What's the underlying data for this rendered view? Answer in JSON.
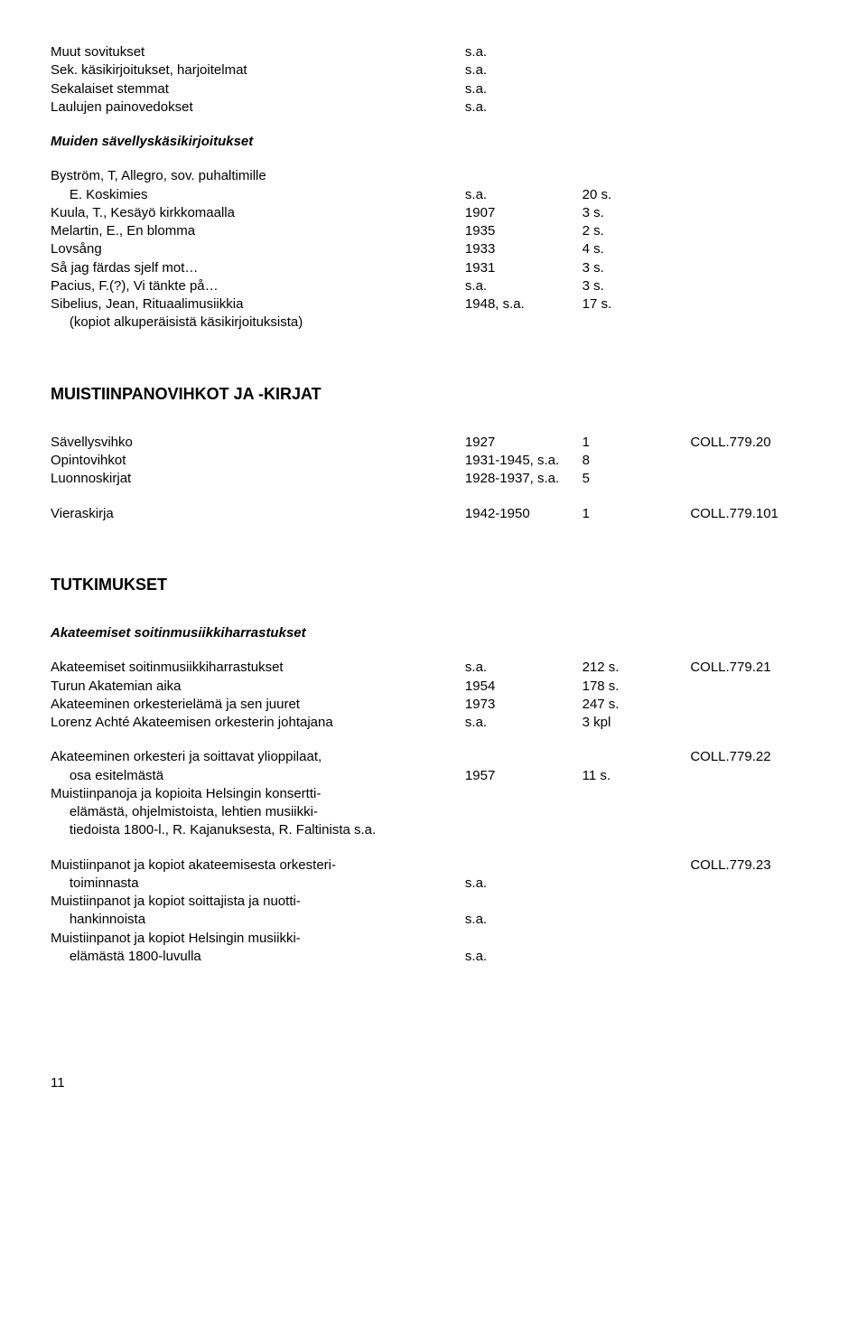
{
  "section1": {
    "rows": [
      {
        "l": "Muut sovitukset",
        "a": "s.a.",
        "b": "",
        "c": ""
      },
      {
        "l": "Sek. käsikirjoitukset, harjoitelmat",
        "a": "s.a.",
        "b": "",
        "c": ""
      },
      {
        "l": "Sekalaiset stemmat",
        "a": "s.a.",
        "b": "",
        "c": ""
      },
      {
        "l": "Laulujen painovedokset",
        "a": "s.a.",
        "b": "",
        "c": ""
      }
    ],
    "subhead": "Muiden sävellyskäsikirjoitukset",
    "rows2": [
      {
        "l": "Byström, T, Allegro, sov. puhaltimille",
        "a": "",
        "b": "",
        "c": ""
      },
      {
        "l": "     E. Koskimies",
        "a": "s.a.",
        "b": "20 s.",
        "c": ""
      },
      {
        "l": "Kuula, T., Kesäyö kirkkomaalla",
        "a": "1907",
        "b": "3 s.",
        "c": ""
      },
      {
        "l": "Melartin, E., En blomma",
        "a": "1935",
        "b": "2 s.",
        "c": ""
      },
      {
        "l": "Lovsång",
        "a": "1933",
        "b": "4 s.",
        "c": ""
      },
      {
        "l": "Så jag färdas sjelf mot…",
        "a": "1931",
        "b": "3 s.",
        "c": ""
      },
      {
        "l": "Pacius, F.(?), Vi tänkte på…",
        "a": "s.a.",
        "b": "3 s.",
        "c": ""
      },
      {
        "l": "Sibelius, Jean, Rituaalimusiikkia",
        "a": "1948, s.a.",
        "b": "17 s.",
        "c": ""
      },
      {
        "l": "     (kopiot alkuperäisistä käsikirjoituksista)",
        "a": "",
        "b": "",
        "c": ""
      }
    ]
  },
  "heading2": "MUISTIINPANOVIHKOT JA -KIRJAT",
  "section2": {
    "rows": [
      {
        "l": "Sävellysvihko",
        "a": "1927",
        "b": "1",
        "c": "COLL.779.20"
      },
      {
        "l": "Opintovihkot",
        "a": "1931-1945, s.a.",
        "b": "8",
        "c": ""
      },
      {
        "l": "Luonnoskirjat",
        "a": "1928-1937, s.a.",
        "b": "5",
        "c": ""
      }
    ],
    "rows2": [
      {
        "l": "Vieraskirja",
        "a": "1942-1950",
        "b": "1",
        "c": "COLL.779.101"
      }
    ]
  },
  "heading3": "TUTKIMUKSET",
  "subhead3": "Akateemiset soitinmusiikkiharrastukset",
  "section3": {
    "rows": [
      {
        "l": "Akateemiset soitinmusiikkiharrastukset",
        "a": "s.a.",
        "b": "212 s.",
        "c": "COLL.779.21"
      },
      {
        "l": "Turun Akatemian aika",
        "a": "1954",
        "b": "178 s.",
        "c": ""
      },
      {
        "l": "Akateeminen orkesterielämä ja sen juuret",
        "a": "1973",
        "b": "247 s.",
        "c": ""
      },
      {
        "l": "Lorenz Achté Akateemisen orkesterin johtajana",
        "a": "s.a.",
        "b": "3 kpl",
        "c": ""
      }
    ],
    "rows2": [
      {
        "l": "Akateeminen orkesteri ja soittavat ylioppilaat,",
        "a": "",
        "b": "",
        "c": "COLL.779.22"
      },
      {
        "l": "     osa esitelmästä",
        "a": "1957",
        "b": "11 s.",
        "c": ""
      },
      {
        "l": "Muistiinpanoja ja kopioita Helsingin konsertti-",
        "a": "",
        "b": "",
        "c": ""
      },
      {
        "l": "     elämästä, ohjelmistoista, lehtien musiikki-",
        "a": "",
        "b": "",
        "c": ""
      },
      {
        "l": "     tiedoista 1800-l., R. Kajanuksesta, R. Faltinista s.a.",
        "a": "",
        "b": "",
        "c": ""
      }
    ],
    "rows3": [
      {
        "l": "Muistiinpanot ja kopiot akateemisesta orkesteri-",
        "a": "",
        "b": "",
        "c": "COLL.779.23"
      },
      {
        "l": "     toiminnasta",
        "a": "s.a.",
        "b": "",
        "c": ""
      },
      {
        "l": "Muistiinpanot ja kopiot soittajista ja nuotti-",
        "a": "",
        "b": "",
        "c": ""
      },
      {
        "l": "     hankinnoista",
        "a": "s.a.",
        "b": "",
        "c": ""
      },
      {
        "l": "Muistiinpanot ja kopiot Helsingin musiikki-",
        "a": "",
        "b": "",
        "c": ""
      },
      {
        "l": "     elämästä 1800-luvulla",
        "a": "s.a.",
        "b": "",
        "c": ""
      }
    ]
  },
  "pageno": "11"
}
